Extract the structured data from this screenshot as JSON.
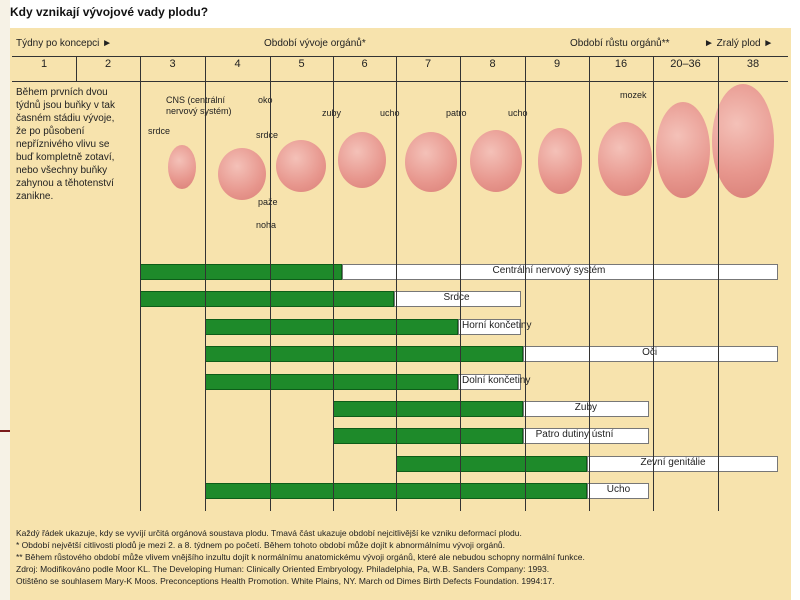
{
  "title": "Kdy vznikají vývojové vady plodu?",
  "header_row": {
    "weeks_label": "Týdny po koncepci ►",
    "organ_period": "Období vývoje orgánů*",
    "growth_period": "Období růstu orgánů**",
    "term_label": "► Zralý plod ►"
  },
  "week_numbers": [
    "1",
    "2",
    "3",
    "4",
    "5",
    "6",
    "7",
    "8",
    "9",
    "16",
    "20–36",
    "38"
  ],
  "intro_text": [
    "Během prvních dvou",
    "týdnů jsou buňky v tak",
    "časném stádiu vývoje,",
    "že po působení",
    "nepříznivého vlivu se",
    "buď kompletně zotaví,",
    "nebo všechny buňky",
    "zahynou a těhotenství",
    "zanikne."
  ],
  "organ_labels": {
    "cns": "CNS (centrální",
    "cns2": "nervový systém)",
    "srdce": "srdce",
    "oko": "oko",
    "srdce2": "srdce",
    "pazе": "paže",
    "noha": "noha",
    "zuby": "zuby",
    "ucho": "ucho",
    "patro": "patro",
    "ucho2": "ucho",
    "mozek": "mozek"
  },
  "chart_data": {
    "type": "bar",
    "x_categories": [
      "1",
      "2",
      "3",
      "4",
      "5",
      "6",
      "7",
      "8",
      "9",
      "16",
      "20–36",
      "38"
    ],
    "description_note": "Each row shows sensitive (dark) and less sensitive (light) periods by week column",
    "series": [
      {
        "name": "Centrální nervový systém",
        "dark_start": "3",
        "dark_end": "5",
        "light_end": "38"
      },
      {
        "name": "Srdce",
        "dark_start": "3",
        "dark_end": "6",
        "light_end": "8"
      },
      {
        "name": "Horní končetiny",
        "dark_start": "4",
        "dark_end": "7",
        "light_end": "8"
      },
      {
        "name": "Oči",
        "dark_start": "4",
        "dark_end": "8",
        "light_end": "38"
      },
      {
        "name": "Dolní končetiny",
        "dark_start": "4",
        "dark_end": "7",
        "light_end": "8"
      },
      {
        "name": "Zuby",
        "dark_start": "6",
        "dark_end": "8",
        "light_end": "16"
      },
      {
        "name": "Patro dutiny ústní",
        "dark_start": "6",
        "dark_end": "8",
        "light_end": "16"
      },
      {
        "name": "Zevní genitálie",
        "dark_start": "7",
        "dark_end": "9",
        "light_end": "38"
      },
      {
        "name": "Ucho",
        "dark_start": "4",
        "dark_end": "9",
        "light_end": "16"
      }
    ]
  },
  "footnotes": [
    "Každý řádek ukazuje, kdy se vyvíjí určitá orgánová soustava plodu. Tmavá část ukazuje období nejcitlivější ke vzniku deformací plodu.",
    "* Období největší citlivosti plodů je mezi 2. a 8. týdnem po početí. Během tohoto období může dojít k abnormálnímu vývoji orgánů.",
    "** Během růstového období může vlivem vnějšího inzultu dojít k normálnímu anatomickému vývoji orgánů, které ale nebudou schopny normální funkce.",
    "Zdroj: Modifikováno podle Moor KL. The Developing Human: Clinically Oriented Embryology. Philadelphia, Pa, W.B. Sanders Company: 1993.",
    "Otištěno se souhlasem Mary-K Moos. Preconceptions Health Promotion. White Plains, NY. March od Dimes Birth Defects Foundation. 1994:17."
  ],
  "colors": {
    "green": "#1e8a2a",
    "background": "#f7e3ad",
    "white": "#ffffff"
  }
}
